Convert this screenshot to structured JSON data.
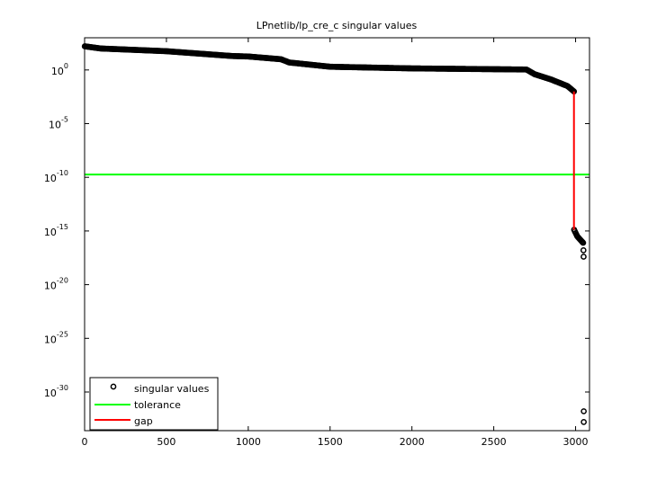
{
  "chart_data": {
    "type": "scatter",
    "title": "LPnetlib/lp_cre_c singular values",
    "xlabel": "",
    "ylabel": "",
    "xlim": [
      0,
      3085
    ],
    "ylim": [
      2.5e-34,
      1000.0
    ],
    "yscale": "log",
    "grid": false,
    "legend_position": "bottom-left",
    "x_ticks": [
      "0",
      "500",
      "1000",
      "1500",
      "2000",
      "2500",
      "3000"
    ],
    "x_tick_values": [
      0,
      500,
      1000,
      1500,
      2000,
      2500,
      3000
    ],
    "y_ticks": [
      {
        "base": "10",
        "exp": "0",
        "value": 0
      },
      {
        "base": "10",
        "exp": "-5",
        "value": -5
      },
      {
        "base": "10",
        "exp": "-10",
        "value": -10
      },
      {
        "base": "10",
        "exp": "-15",
        "value": -15
      },
      {
        "base": "10",
        "exp": "-20",
        "value": -20
      },
      {
        "base": "10",
        "exp": "-25",
        "value": -25
      },
      {
        "base": "10",
        "exp": "-30",
        "value": -30
      }
    ],
    "series": [
      {
        "name": "singular values",
        "marker": "circle",
        "color": "#000000",
        "x": [
          1,
          100,
          500,
          900,
          1000,
          1200,
          1250,
          1500,
          2000,
          2700,
          2750,
          2850,
          2950,
          2990,
          2991,
          3010,
          3040,
          3046,
          3048,
          3049,
          3050
        ],
        "y": [
          160.0,
          100.0,
          56.0,
          20.0,
          18.0,
          10.0,
          5.0,
          2.0,
          1.4,
          1.1,
          0.4,
          0.13,
          0.032,
          0.01,
          1.3e-15,
          3.2e-16,
          1e-16,
          7.9e-17,
          1.6e-17,
          4e-18,
          1.6e-32
        ]
      },
      {
        "name": "tolerance",
        "color": "#00ff00",
        "y": 1.8e-10
      },
      {
        "name": "gap",
        "color": "#ff0000",
        "x": 2990,
        "y": [
          0.01,
          1.3e-15
        ]
      }
    ],
    "extra_points": [
      {
        "x": 3050,
        "y": 1.6e-33
      }
    ]
  }
}
